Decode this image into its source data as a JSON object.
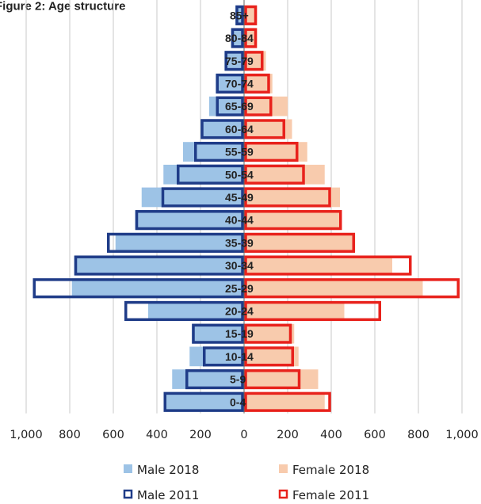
{
  "chart_data": {
    "type": "bar",
    "orientation": "horizontal",
    "subtype": "population-pyramid",
    "title": "Figure 2: Age structure",
    "categories": [
      "0-4",
      "5-9",
      "10-14",
      "15-19",
      "20-24",
      "25-29",
      "30-34",
      "35-39",
      "40-44",
      "45-49",
      "50-54",
      "55-59",
      "60-64",
      "65-69",
      "70-74",
      "75-79",
      "80-84",
      "85+"
    ],
    "series": [
      {
        "name": "Male 2018",
        "side": "left",
        "style": "filled",
        "color": "#9DC3E6",
        "values": [
          360,
          330,
          250,
          240,
          440,
          790,
          780,
          590,
          500,
          470,
          370,
          280,
          200,
          160,
          130,
          90,
          60,
          40
        ]
      },
      {
        "name": "Female 2018",
        "side": "right",
        "style": "filled",
        "color": "#F8CBAD",
        "values": [
          370,
          340,
          250,
          230,
          460,
          820,
          680,
          510,
          440,
          440,
          370,
          290,
          220,
          200,
          130,
          100,
          60,
          60
        ]
      },
      {
        "name": "Male 2011",
        "side": "left",
        "style": "outline",
        "color": "#1F3C88",
        "values": [
          370,
          270,
          190,
          240,
          550,
          970,
          780,
          630,
          500,
          380,
          310,
          230,
          200,
          130,
          130,
          90,
          60,
          40
        ]
      },
      {
        "name": "Female 2011",
        "side": "right",
        "style": "outline",
        "color": "#E8221C",
        "values": [
          400,
          260,
          230,
          220,
          630,
          990,
          770,
          510,
          450,
          400,
          280,
          250,
          190,
          130,
          120,
          90,
          60,
          60
        ]
      }
    ],
    "x_ticks": [
      "1,000",
      "800",
      "600",
      "400",
      "200",
      "0",
      "200",
      "400",
      "600",
      "800",
      "1,000"
    ],
    "xlim": [
      -1000,
      1000
    ],
    "grid": true,
    "legend_position": "bottom"
  }
}
